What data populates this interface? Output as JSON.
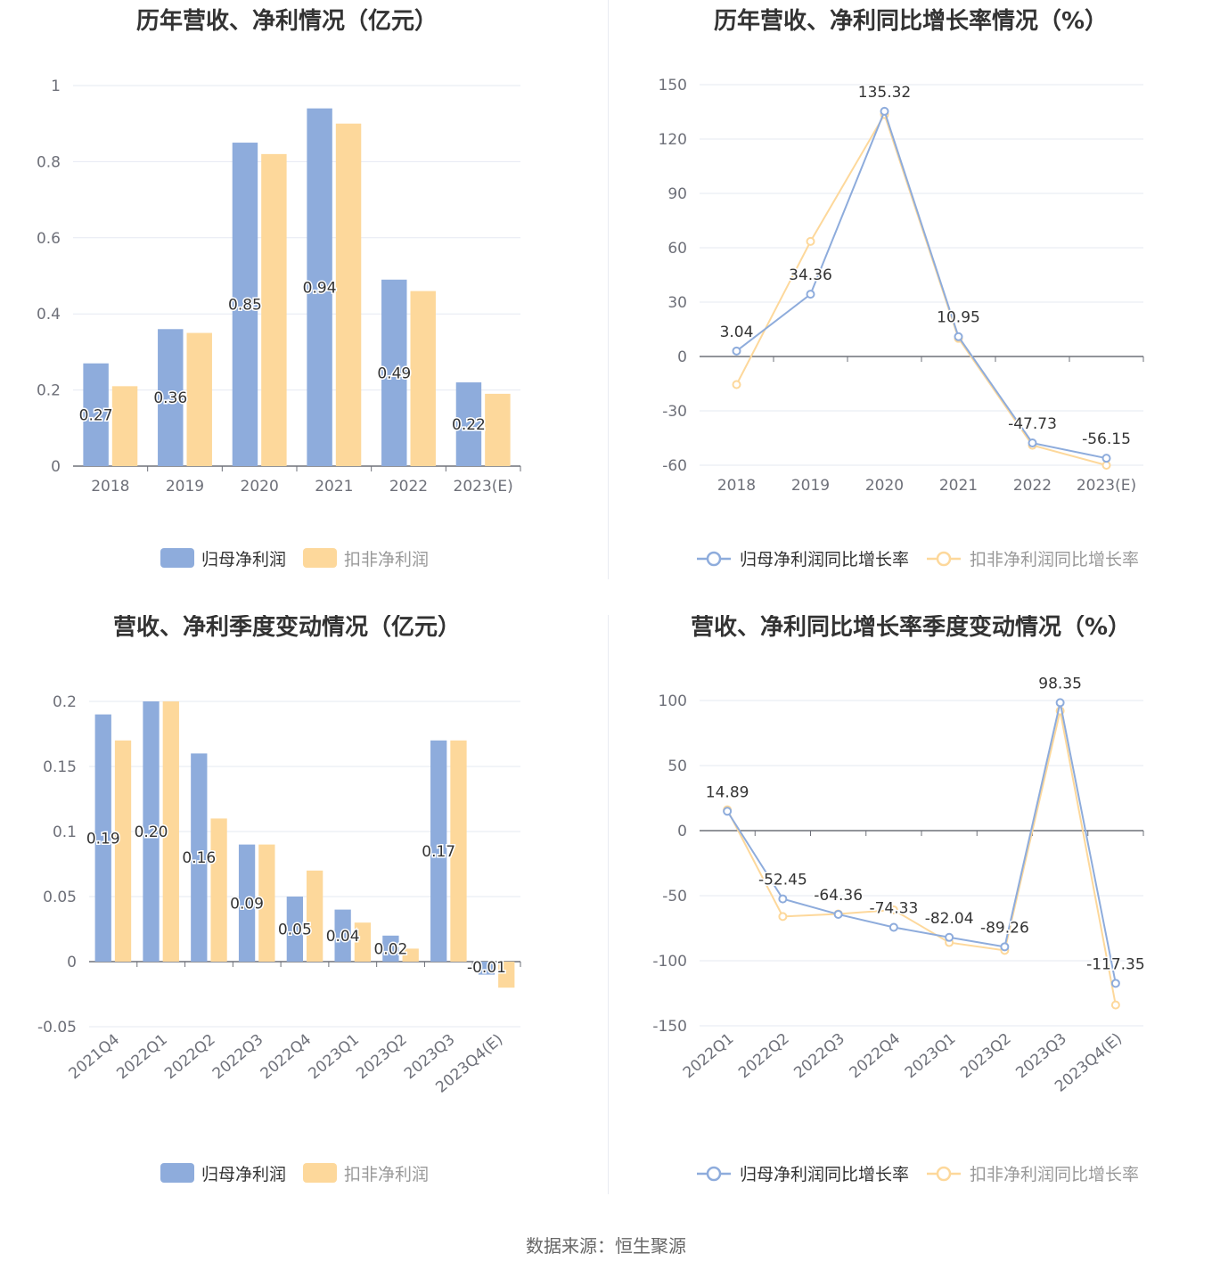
{
  "source": "数据来源：恒生聚源",
  "colors": {
    "series1": "#8eacdc",
    "series2": "#fdd89b",
    "grid": "#e6e9f2",
    "axis": "#6e7079",
    "label": "#333333",
    "title": "#333333"
  },
  "chart_data": [
    {
      "type": "bar",
      "title": "历年营收、净利情况（亿元）",
      "categories": [
        "2018",
        "2019",
        "2020",
        "2021",
        "2022",
        "2023(E)"
      ],
      "ylim": [
        0,
        1
      ],
      "yticks": [
        "0",
        "0.2",
        "0.4",
        "0.6",
        "0.8",
        "1"
      ],
      "ytick_values": [
        0,
        0.2,
        0.4,
        0.6,
        0.8,
        1
      ],
      "series": [
        {
          "name": "归母净利润",
          "values": [
            0.27,
            0.36,
            0.85,
            0.94,
            0.49,
            0.22
          ],
          "labels": [
            "0.27",
            "0.36",
            "0.85",
            "0.94",
            "0.49",
            "0.22"
          ]
        },
        {
          "name": "扣非净利润",
          "values": [
            0.21,
            0.35,
            0.82,
            0.9,
            0.46,
            0.19
          ]
        }
      ],
      "grid": true,
      "legend": "bottom"
    },
    {
      "type": "line",
      "title": "历年营收、净利同比增长率情况（%）",
      "categories": [
        "2018",
        "2019",
        "2020",
        "2021",
        "2022",
        "2023(E)"
      ],
      "ylim": [
        -60,
        150
      ],
      "yticks": [
        "-60",
        "-30",
        "0",
        "30",
        "60",
        "90",
        "120",
        "150"
      ],
      "ytick_values": [
        -60,
        -30,
        0,
        30,
        60,
        90,
        120,
        150
      ],
      "series": [
        {
          "name": "归母净利润同比增长率",
          "values": [
            3.04,
            34.36,
            135.32,
            10.95,
            -47.73,
            -56.15
          ],
          "labels": [
            "3.04",
            "34.36",
            "135.32",
            "10.95",
            "-47.73",
            "-56.15"
          ]
        },
        {
          "name": "扣非净利润同比增长率",
          "values": [
            -15.5,
            63.5,
            133.5,
            10.0,
            -49.0,
            -60.0
          ]
        }
      ],
      "grid": true,
      "legend": "bottom"
    },
    {
      "type": "bar",
      "title": "营收、净利季度变动情况（亿元）",
      "categories": [
        "2021Q4",
        "2022Q1",
        "2022Q2",
        "2022Q3",
        "2022Q4",
        "2023Q1",
        "2023Q2",
        "2023Q3",
        "2023Q4(E)"
      ],
      "ylim": [
        -0.05,
        0.2
      ],
      "yticks": [
        "-0.05",
        "0",
        "0.05",
        "0.1",
        "0.15",
        "0.2"
      ],
      "ytick_values": [
        -0.05,
        0,
        0.05,
        0.1,
        0.15,
        0.2
      ],
      "series": [
        {
          "name": "归母净利润",
          "values": [
            0.19,
            0.2,
            0.16,
            0.09,
            0.05,
            0.04,
            0.02,
            0.17,
            -0.01
          ],
          "labels": [
            "0.19",
            "0.20",
            "0.16",
            "0.09",
            "0.05",
            "0.04",
            "0.02",
            "0.17",
            "-0.01"
          ]
        },
        {
          "name": "扣非净利润",
          "values": [
            0.17,
            0.2,
            0.11,
            0.09,
            0.07,
            0.03,
            0.01,
            0.17,
            -0.02
          ]
        }
      ],
      "grid": true,
      "legend": "bottom"
    },
    {
      "type": "line",
      "title": "营收、净利同比增长率季度变动情况（%）",
      "categories": [
        "2022Q1",
        "2022Q2",
        "2022Q3",
        "2022Q4",
        "2023Q1",
        "2023Q2",
        "2023Q3",
        "2023Q4(E)"
      ],
      "ylim": [
        -150,
        100
      ],
      "yticks": [
        "-150",
        "-100",
        "-50",
        "0",
        "50",
        "100"
      ],
      "ytick_values": [
        -150,
        -100,
        -50,
        0,
        50,
        100
      ],
      "series": [
        {
          "name": "归母净利润同比增长率",
          "values": [
            14.89,
            -52.45,
            -64.36,
            -74.33,
            -82.04,
            -89.26,
            98.35,
            -117.35
          ],
          "labels": [
            "14.89",
            "-52.45",
            "-64.36",
            "-74.33",
            "-82.04",
            "-89.26",
            "98.35",
            "-117.35"
          ]
        },
        {
          "name": "扣非净利润同比增长率",
          "values": [
            16.0,
            -66.0,
            -64.0,
            -61.0,
            -86.0,
            -92.0,
            92.0,
            -134.0
          ]
        }
      ],
      "grid": true,
      "legend": "bottom"
    }
  ]
}
